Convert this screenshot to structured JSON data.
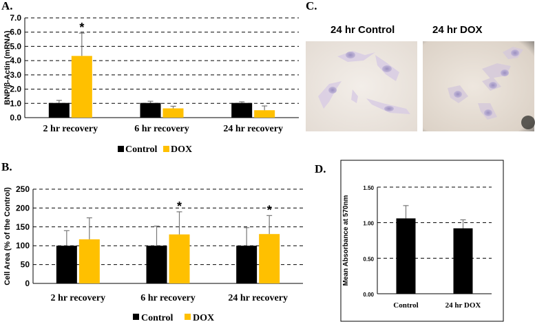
{
  "colors": {
    "control": "#000000",
    "dox": "#ffc000",
    "grid": "#000000",
    "error": "#777777"
  },
  "chart_data": [
    {
      "id": "A",
      "panel_label": "A.",
      "type": "bar",
      "ylabel": "BNP/β-Actin (mRNA)",
      "ylim": [
        0,
        7
      ],
      "yticks": [
        "0.0",
        "1.0",
        "2.0",
        "3.0",
        "4.0",
        "5.0",
        "6.0",
        "7.0"
      ],
      "ytick_values": [
        0,
        1,
        2,
        3,
        4,
        5,
        6,
        7
      ],
      "categories": [
        "2 hr recovery",
        "6 hr recovery",
        "24 hr recovery"
      ],
      "series": [
        {
          "name": "Control",
          "values": [
            1.03,
            1.03,
            1.03
          ],
          "errors": [
            0.18,
            0.12,
            0.08
          ]
        },
        {
          "name": "DOX",
          "values": [
            4.33,
            0.65,
            0.52
          ],
          "errors": [
            1.6,
            0.15,
            0.3
          ]
        }
      ],
      "significance": [
        "*",
        "",
        ""
      ],
      "legend": [
        "Control",
        "DOX"
      ],
      "legend_position": "bottom-center"
    },
    {
      "id": "B",
      "panel_label": "B.",
      "type": "bar",
      "ylabel": "Cell Area (% of the Control)",
      "ylim": [
        0,
        250
      ],
      "yticks": [
        "0",
        "50",
        "100",
        "150",
        "200",
        "250"
      ],
      "ytick_values": [
        0,
        50,
        100,
        150,
        200,
        250
      ],
      "categories": [
        "2 hr recovery",
        "6 hr recovery",
        "24 hr recovery"
      ],
      "series": [
        {
          "name": "Control",
          "values": [
            100,
            100,
            100
          ],
          "errors": [
            40,
            52,
            48
          ]
        },
        {
          "name": "DOX",
          "values": [
            117,
            130,
            131
          ],
          "errors": [
            57,
            60,
            49
          ]
        }
      ],
      "significance": [
        "",
        "*",
        "*"
      ],
      "legend": [
        "Control",
        "DOX"
      ],
      "legend_position": "bottom-center"
    },
    {
      "id": "D",
      "panel_label": "D.",
      "type": "bar",
      "ylabel": "Mean Absorbance at 570nm",
      "ylim": [
        0,
        1.5
      ],
      "yticks": [
        "0.00",
        "0.50",
        "1.00",
        "1.50"
      ],
      "ytick_values": [
        0,
        0.5,
        1.0,
        1.5
      ],
      "categories": [
        "Control",
        "24 hr DOX"
      ],
      "series": [
        {
          "name": "Absorbance",
          "values": [
            1.06,
            0.92
          ],
          "errors": [
            0.18,
            0.12
          ]
        }
      ]
    }
  ],
  "panel_c": {
    "panel_label": "C.",
    "images": [
      {
        "title": "24 hr Control"
      },
      {
        "title": "24 hr DOX"
      }
    ]
  }
}
